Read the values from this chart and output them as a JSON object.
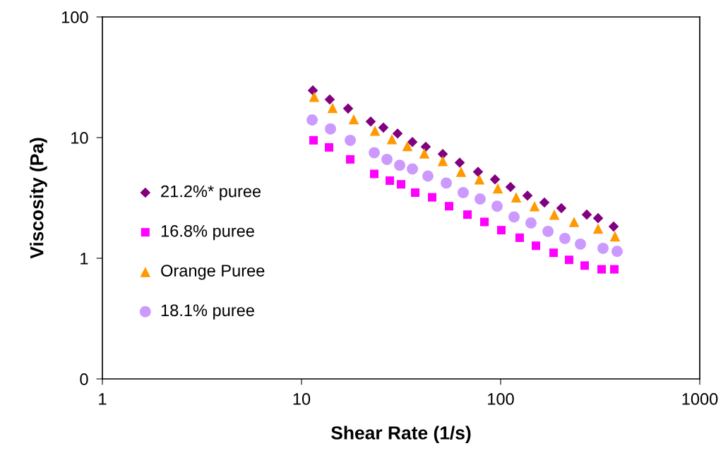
{
  "chart_data": {
    "type": "scatter",
    "xlabel": "Shear Rate (1/s)",
    "ylabel": "Viscosity (Pa)",
    "log": "xy",
    "xlim": [
      1,
      1000
    ],
    "xticks": [
      1,
      10,
      100,
      1000
    ],
    "ylim": [
      0.1,
      100
    ],
    "yticks": [
      {
        "value": 0.1,
        "label": "0"
      },
      1,
      10,
      100
    ],
    "grid": false,
    "legend": "center left",
    "series": [
      {
        "name": "21.2%* puree",
        "color": "#800080",
        "marker": "diamond",
        "x": [
          11.4,
          13.86,
          17.14,
          22.26,
          25.78,
          30.37,
          36.05,
          42.08,
          51.21,
          62.29,
          77.0,
          93.7,
          112.1,
          136.4,
          165.9,
          201.8,
          270.8,
          308.6,
          369.4
        ],
        "values": [
          24.6,
          20.7,
          17.4,
          13.6,
          12.1,
          10.8,
          9.2,
          8.4,
          7.3,
          6.2,
          5.2,
          4.5,
          3.9,
          3.3,
          2.9,
          2.6,
          2.3,
          2.15,
          1.83
        ]
      },
      {
        "name": "16.8% puree",
        "color": "#ff00ff",
        "marker": "square",
        "x": [
          11.49,
          13.75,
          17.57,
          23.19,
          27.76,
          31.62,
          37.24,
          45.29,
          55.1,
          68.15,
          82.9,
          100.8,
          124.6,
          150.4,
          184.5,
          220.8,
          264.2,
          321.5,
          372.4
        ],
        "values": [
          9.5,
          8.3,
          6.6,
          5.0,
          4.4,
          4.1,
          3.5,
          3.2,
          2.7,
          2.3,
          2.0,
          1.71,
          1.48,
          1.27,
          1.11,
          0.97,
          0.87,
          0.81,
          0.81
        ]
      },
      {
        "name": "Orange Puree",
        "color": "#ff9900",
        "marker": "triangle",
        "x": [
          11.58,
          14.32,
          18.3,
          23.38,
          28.44,
          34.03,
          41.4,
          51.21,
          63.32,
          78.25,
          96.8,
          119.7,
          148.0,
          186.0,
          233.8,
          308.6,
          375.4
        ],
        "values": [
          21.8,
          17.6,
          14.2,
          11.4,
          9.7,
          8.5,
          7.4,
          6.4,
          5.2,
          4.5,
          3.8,
          3.2,
          2.7,
          2.3,
          2.0,
          1.76,
          1.52
        ]
      },
      {
        "name": "18.1% puree",
        "color": "#cc99ff",
        "marker": "circle",
        "x": [
          11.31,
          13.98,
          17.57,
          23.19,
          26.86,
          31.12,
          36.05,
          43.13,
          53.33,
          64.9,
          78.9,
          96.0,
          116.8,
          142.1,
          172.9,
          210.2,
          251.6,
          326.8,
          384.7
        ],
        "values": [
          14.0,
          11.8,
          9.5,
          7.5,
          6.6,
          5.9,
          5.5,
          4.8,
          4.2,
          3.5,
          3.1,
          2.7,
          2.2,
          1.96,
          1.67,
          1.46,
          1.31,
          1.21,
          1.14
        ]
      }
    ]
  }
}
